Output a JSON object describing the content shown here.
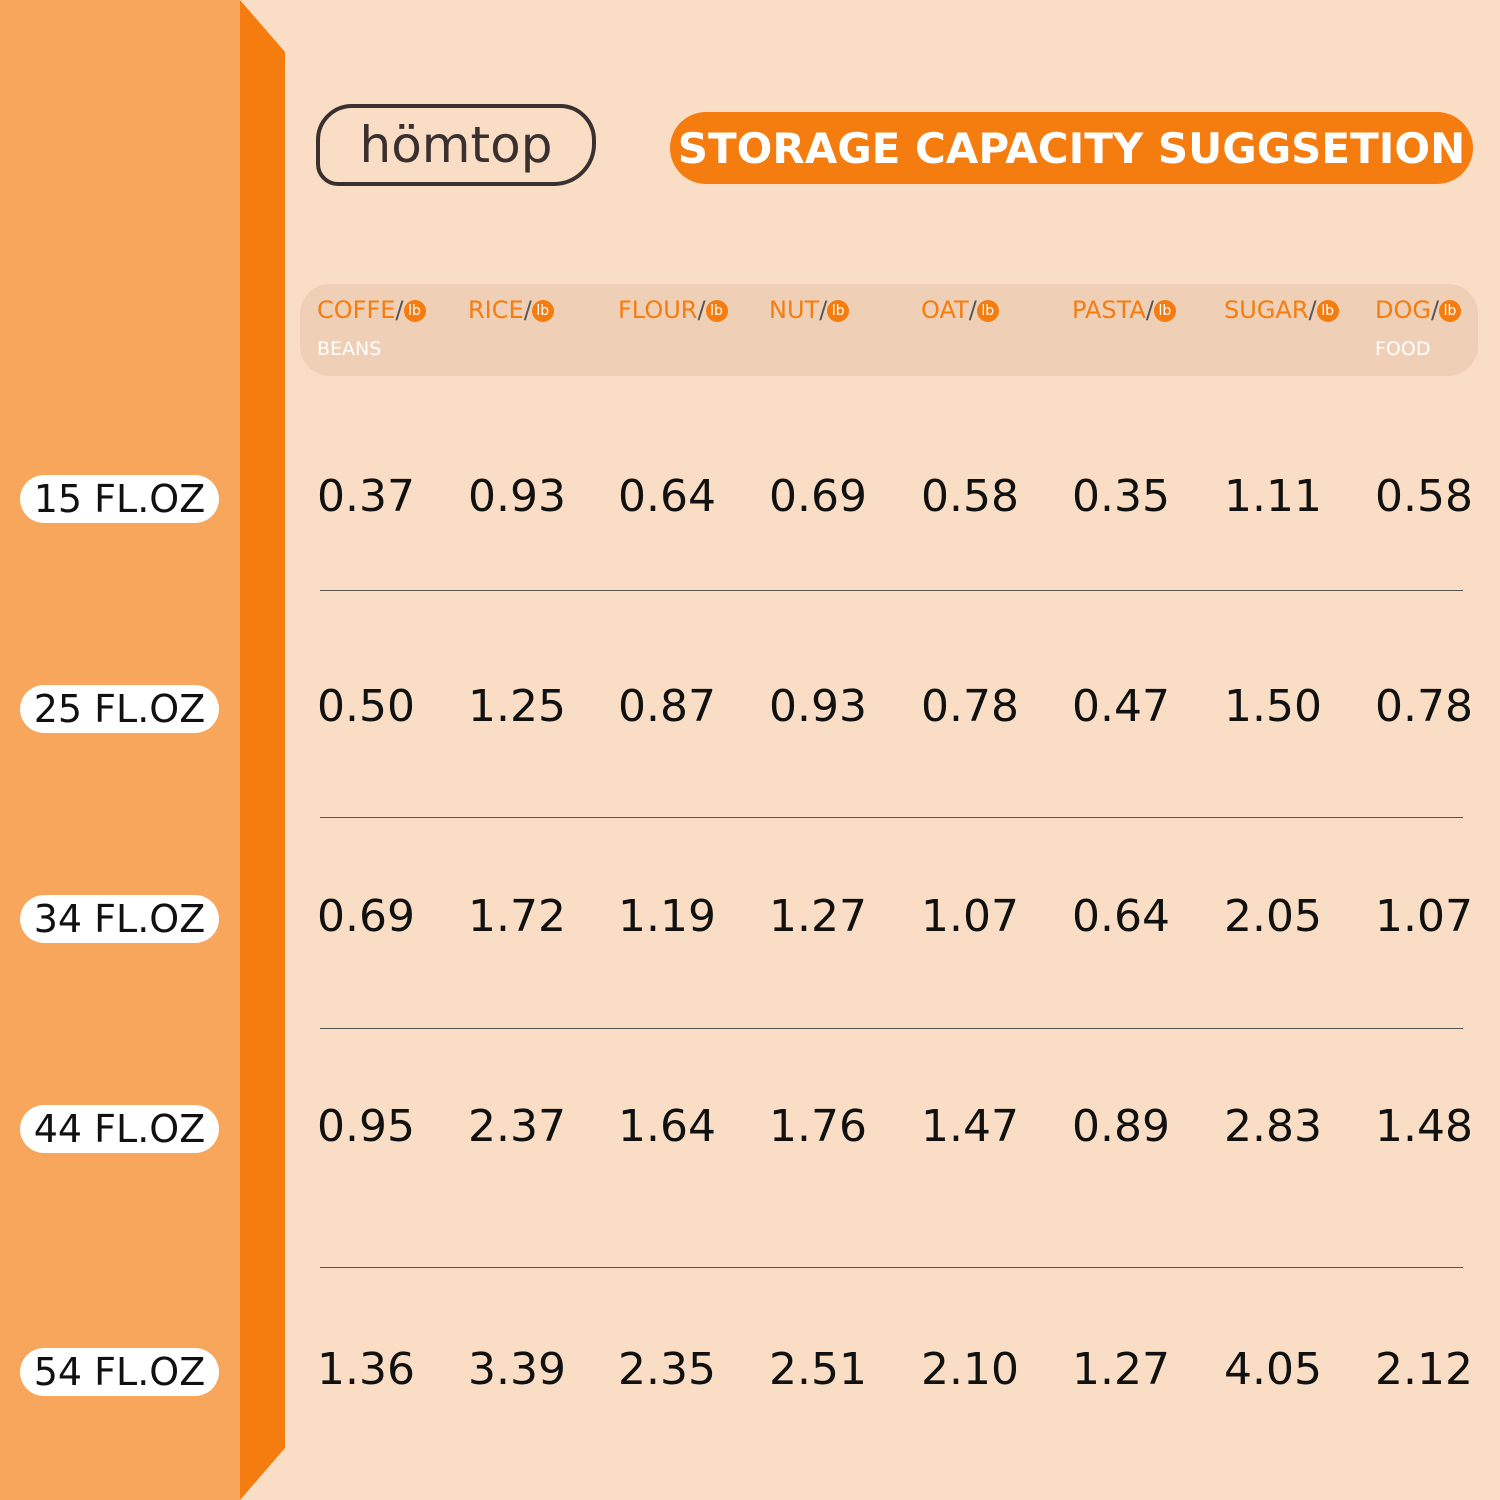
{
  "logo": "hömtop",
  "title": "STORAGE CAPACITY SUGGSETION",
  "columns": [
    {
      "name": "COFFE",
      "sep": "/",
      "unit": "lb",
      "sub": "BEANS"
    },
    {
      "name": "RICE",
      "sep": "/",
      "unit": "lb"
    },
    {
      "name": "FLOUR",
      "sep": "/",
      "unit": "lb"
    },
    {
      "name": "NUT",
      "sep": "/",
      "unit": "lb"
    },
    {
      "name": "OAT",
      "sep": "/",
      "unit": "lb"
    },
    {
      "name": "PASTA",
      "sep": "/",
      "unit": "lb"
    },
    {
      "name": "SUGAR",
      "sep": "/",
      "unit": "lb"
    },
    {
      "name": "DOG",
      "sep": "/",
      "unit": "lb",
      "sub": "FOOD"
    }
  ],
  "rows": [
    {
      "size": "15 FL.OZ",
      "values": [
        "0.37",
        "0.93",
        "0.64",
        "0.69",
        "0.58",
        "0.35",
        "1.11",
        "0.58"
      ]
    },
    {
      "size": "25 FL.OZ",
      "values": [
        "0.50",
        "1.25",
        "0.87",
        "0.93",
        "0.78",
        "0.47",
        "1.50",
        "0.78"
      ]
    },
    {
      "size": "34 FL.OZ",
      "values": [
        "0.69",
        "1.72",
        "1.19",
        "1.27",
        "1.07",
        "0.64",
        "2.05",
        "1.07"
      ]
    },
    {
      "size": "44 FL.OZ",
      "values": [
        "0.95",
        "2.37",
        "1.64",
        "1.76",
        "1.47",
        "0.89",
        "2.83",
        "1.48"
      ]
    },
    {
      "size": "54 FL.OZ",
      "values": [
        "1.36",
        "3.39",
        "2.35",
        "2.51",
        "2.10",
        "1.27",
        "4.05",
        "2.12"
      ]
    }
  ]
}
